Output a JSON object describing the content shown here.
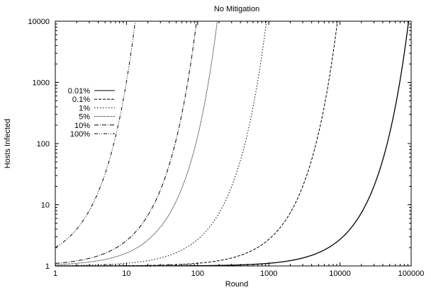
{
  "chart_data": {
    "type": "line",
    "title": "No Mitigation",
    "xlabel": "Round",
    "ylabel": "Hosts Infected",
    "x_scale": "log",
    "y_scale": "log",
    "xlim": [
      1,
      100000
    ],
    "ylim": [
      1,
      10000
    ],
    "x_ticks": [
      "1",
      "10",
      "100",
      "1000",
      "10000",
      "100000"
    ],
    "y_ticks": [
      "1",
      "10",
      "100",
      "1000",
      "10000"
    ],
    "grid": false,
    "legend_position": "top-left",
    "series": [
      {
        "name": "0.01%",
        "dash": "solid",
        "growth_rate": 0.0001
      },
      {
        "name": "0.1%",
        "dash": "dashed",
        "growth_rate": 0.001
      },
      {
        "name": "1%",
        "dash": "dotted-wide",
        "growth_rate": 0.01
      },
      {
        "name": "5%",
        "dash": "dotted-fine",
        "growth_rate": 0.05
      },
      {
        "name": "10%",
        "dash": "dash-dot",
        "growth_rate": 0.1
      },
      {
        "name": "100%",
        "dash": "dash-dot-dot",
        "growth_rate": 1.0
      }
    ]
  }
}
